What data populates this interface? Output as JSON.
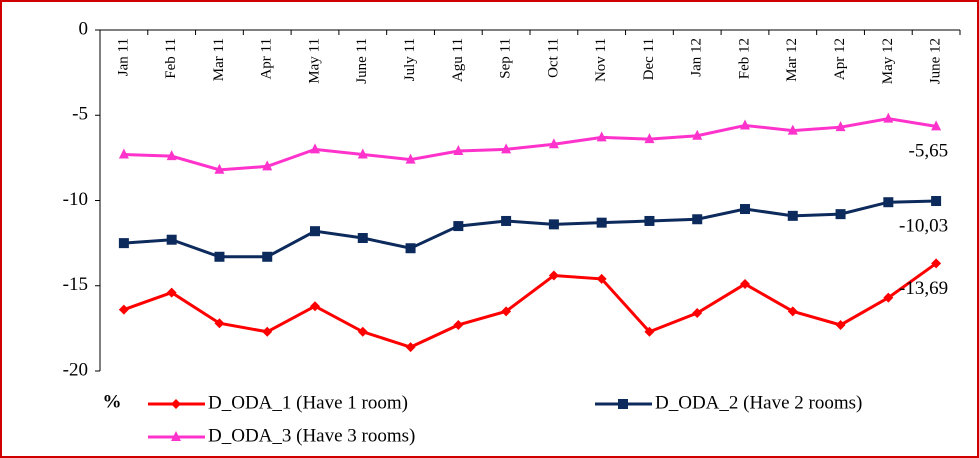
{
  "chart_data": {
    "type": "line",
    "ylabel": "%",
    "categories": [
      "Jan 11",
      "Feb 11",
      "Mar 11",
      "Apr 11",
      "May 11",
      "June 11",
      "July 11",
      "Agu 11",
      "Sep 11",
      "Oct 11",
      "Nov 11",
      "Dec 11",
      "Jan 12",
      "Feb 12",
      "Mar 12",
      "Apr 12",
      "May 12",
      "June 12"
    ],
    "ylim": [
      -20,
      0
    ],
    "yticks": [
      0,
      -5,
      -10,
      -15,
      -20
    ],
    "grid": false,
    "legend": "bottom",
    "series": [
      {
        "name": "D_ODA_1 (Have 1 room)",
        "color": "#ff0000",
        "marker": "diamond",
        "values": [
          -16.4,
          -15.4,
          -17.2,
          -17.7,
          -16.2,
          -17.7,
          -18.6,
          -17.3,
          -16.5,
          -14.4,
          -14.6,
          -17.7,
          -16.6,
          -14.9,
          -16.5,
          -17.3,
          -15.7,
          -13.69
        ],
        "value_labels": [
          null,
          null,
          null,
          null,
          null,
          null,
          null,
          null,
          null,
          null,
          null,
          null,
          null,
          null,
          null,
          null,
          null,
          "-13,69"
        ]
      },
      {
        "name": "D_ODA_2 (Have 2 rooms)",
        "color": "#0d2a5c",
        "marker": "square",
        "values": [
          -12.5,
          -12.3,
          -13.3,
          -13.3,
          -11.8,
          -12.2,
          -12.8,
          -11.5,
          -11.2,
          -11.4,
          -11.3,
          -11.2,
          -11.1,
          -10.5,
          -10.9,
          -10.8,
          -10.1,
          -10.03
        ],
        "value_labels": [
          null,
          null,
          null,
          null,
          null,
          null,
          null,
          null,
          null,
          null,
          null,
          null,
          null,
          null,
          null,
          null,
          null,
          "-10,03"
        ]
      },
      {
        "name": "D_ODA_3 (Have 3 rooms)",
        "color": "#ff33cc",
        "marker": "triangle",
        "values": [
          -7.3,
          -7.4,
          -8.2,
          -8.0,
          -7.0,
          -7.3,
          -7.6,
          -7.1,
          -7.0,
          -6.7,
          -6.3,
          -6.4,
          -6.2,
          -5.6,
          -5.9,
          -5.7,
          -5.2,
          -5.65
        ],
        "value_labels": [
          null,
          null,
          null,
          null,
          null,
          null,
          null,
          null,
          null,
          null,
          null,
          null,
          null,
          null,
          null,
          null,
          null,
          "-5,65"
        ]
      }
    ]
  }
}
